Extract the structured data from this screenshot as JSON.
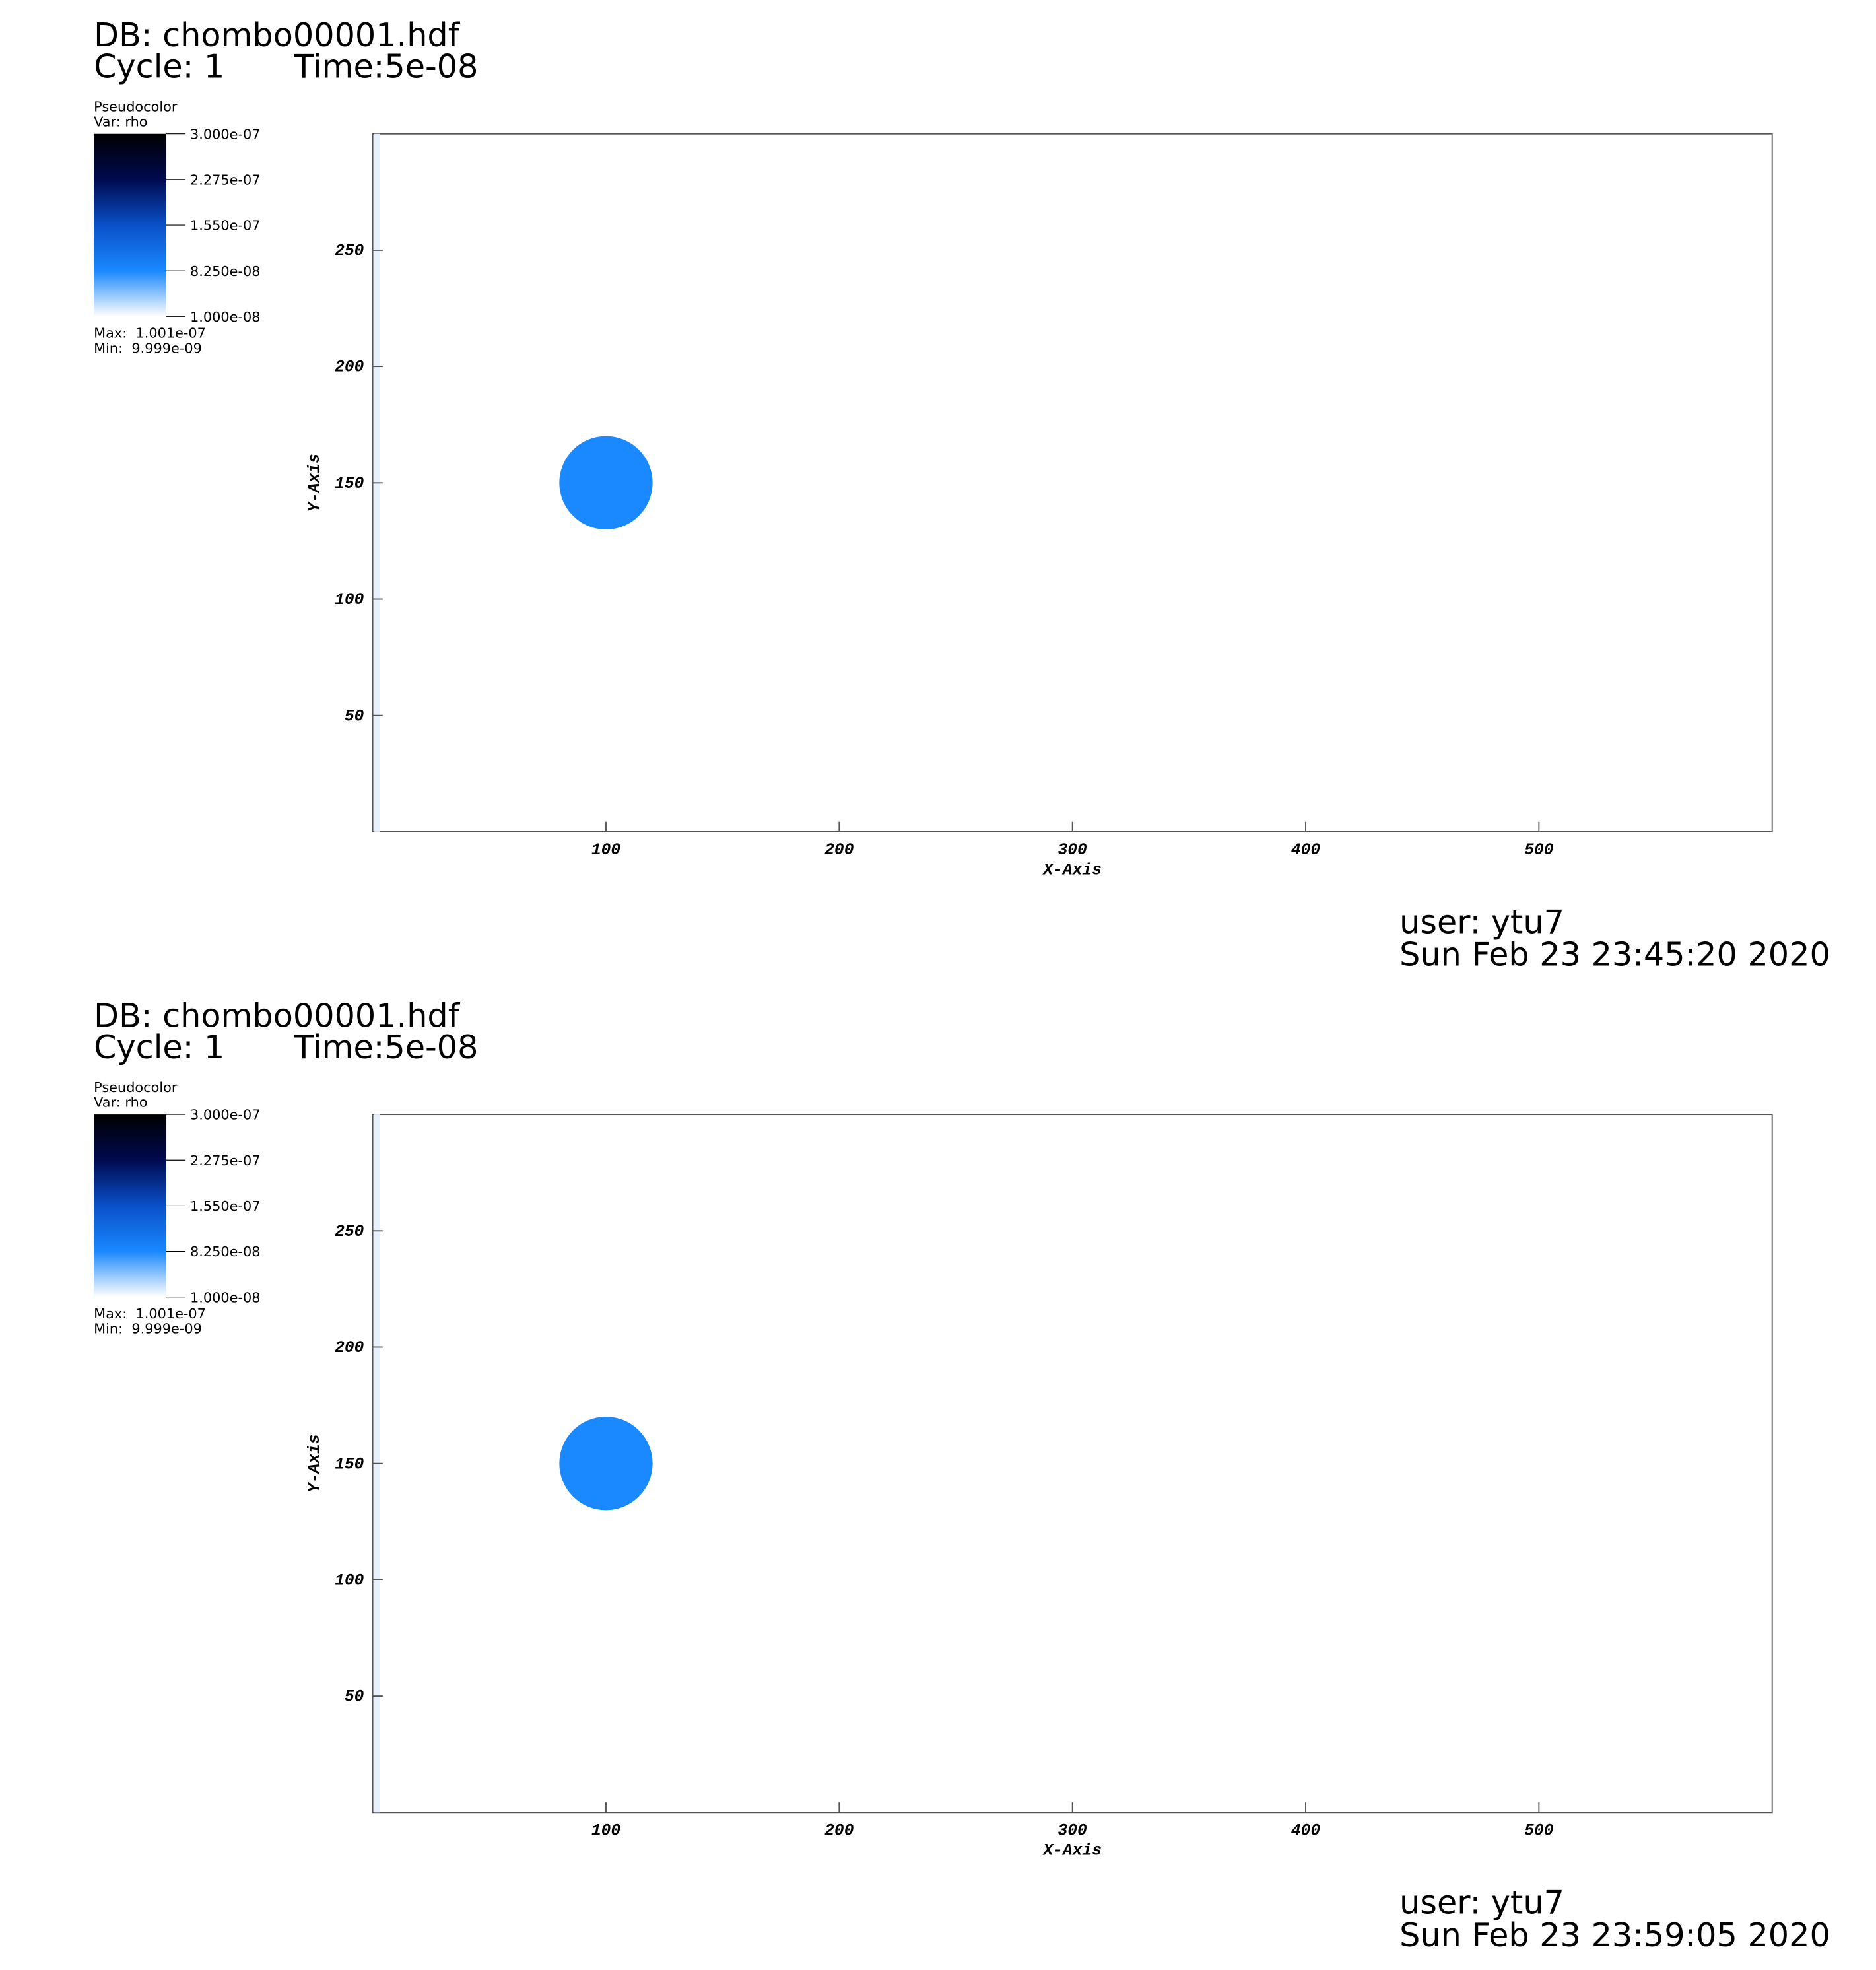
{
  "chart_data": [
    {
      "type": "pseudocolor",
      "title": "DB: chombo00001.hdf",
      "cycle": "Cycle: 1",
      "time": "Time:5e-08",
      "legend_title": "Pseudocolor",
      "legend_var": "Var: rho",
      "legend_ticks": [
        {
          "value": 3e-07,
          "label": "3.000e-07"
        },
        {
          "value": 2.275e-07,
          "label": "2.275e-07"
        },
        {
          "value": 1.55e-07,
          "label": "1.550e-07"
        },
        {
          "value": 8.25e-08,
          "label": "8.250e-08"
        },
        {
          "value": 1e-08,
          "label": "1.000e-08"
        }
      ],
      "colormap": [
        "#000000",
        "#000a50",
        "#0a50c8",
        "#1a88ff",
        "#ffffff"
      ],
      "max": "Max:  1.001e-07",
      "min": "Min:  9.999e-09",
      "xlabel": "X-Axis",
      "ylabel": "Y-Axis",
      "xlim": [
        0,
        600
      ],
      "ylim": [
        0,
        300
      ],
      "xticks": [
        100,
        200,
        300,
        400,
        500
      ],
      "yticks": [
        50,
        100,
        150,
        200,
        250
      ],
      "shapes": [
        {
          "x": 100,
          "y": 150,
          "r": 20,
          "color": "#1a88ff"
        }
      ],
      "user": "user: ytu7",
      "date": "Sun Feb 23 23:45:20 2020"
    },
    {
      "type": "pseudocolor",
      "title": "DB: chombo00001.hdf",
      "cycle": "Cycle: 1",
      "time": "Time:5e-08",
      "legend_title": "Pseudocolor",
      "legend_var": "Var: rho",
      "legend_ticks": [
        {
          "value": 3e-07,
          "label": "3.000e-07"
        },
        {
          "value": 2.275e-07,
          "label": "2.275e-07"
        },
        {
          "value": 1.55e-07,
          "label": "1.550e-07"
        },
        {
          "value": 8.25e-08,
          "label": "8.250e-08"
        },
        {
          "value": 1e-08,
          "label": "1.000e-08"
        }
      ],
      "colormap": [
        "#000000",
        "#000a50",
        "#0a50c8",
        "#1a88ff",
        "#ffffff"
      ],
      "max": "Max:  1.001e-07",
      "min": "Min:  9.999e-09",
      "xlabel": "X-Axis",
      "ylabel": "Y-Axis",
      "xlim": [
        0,
        600
      ],
      "ylim": [
        0,
        300
      ],
      "xticks": [
        100,
        200,
        300,
        400,
        500
      ],
      "yticks": [
        50,
        100,
        150,
        200,
        250
      ],
      "shapes": [
        {
          "x": 100,
          "y": 150,
          "r": 20,
          "color": "#1a88ff"
        }
      ],
      "user": "user: ytu7",
      "date": "Sun Feb 23 23:59:05 2020"
    }
  ]
}
